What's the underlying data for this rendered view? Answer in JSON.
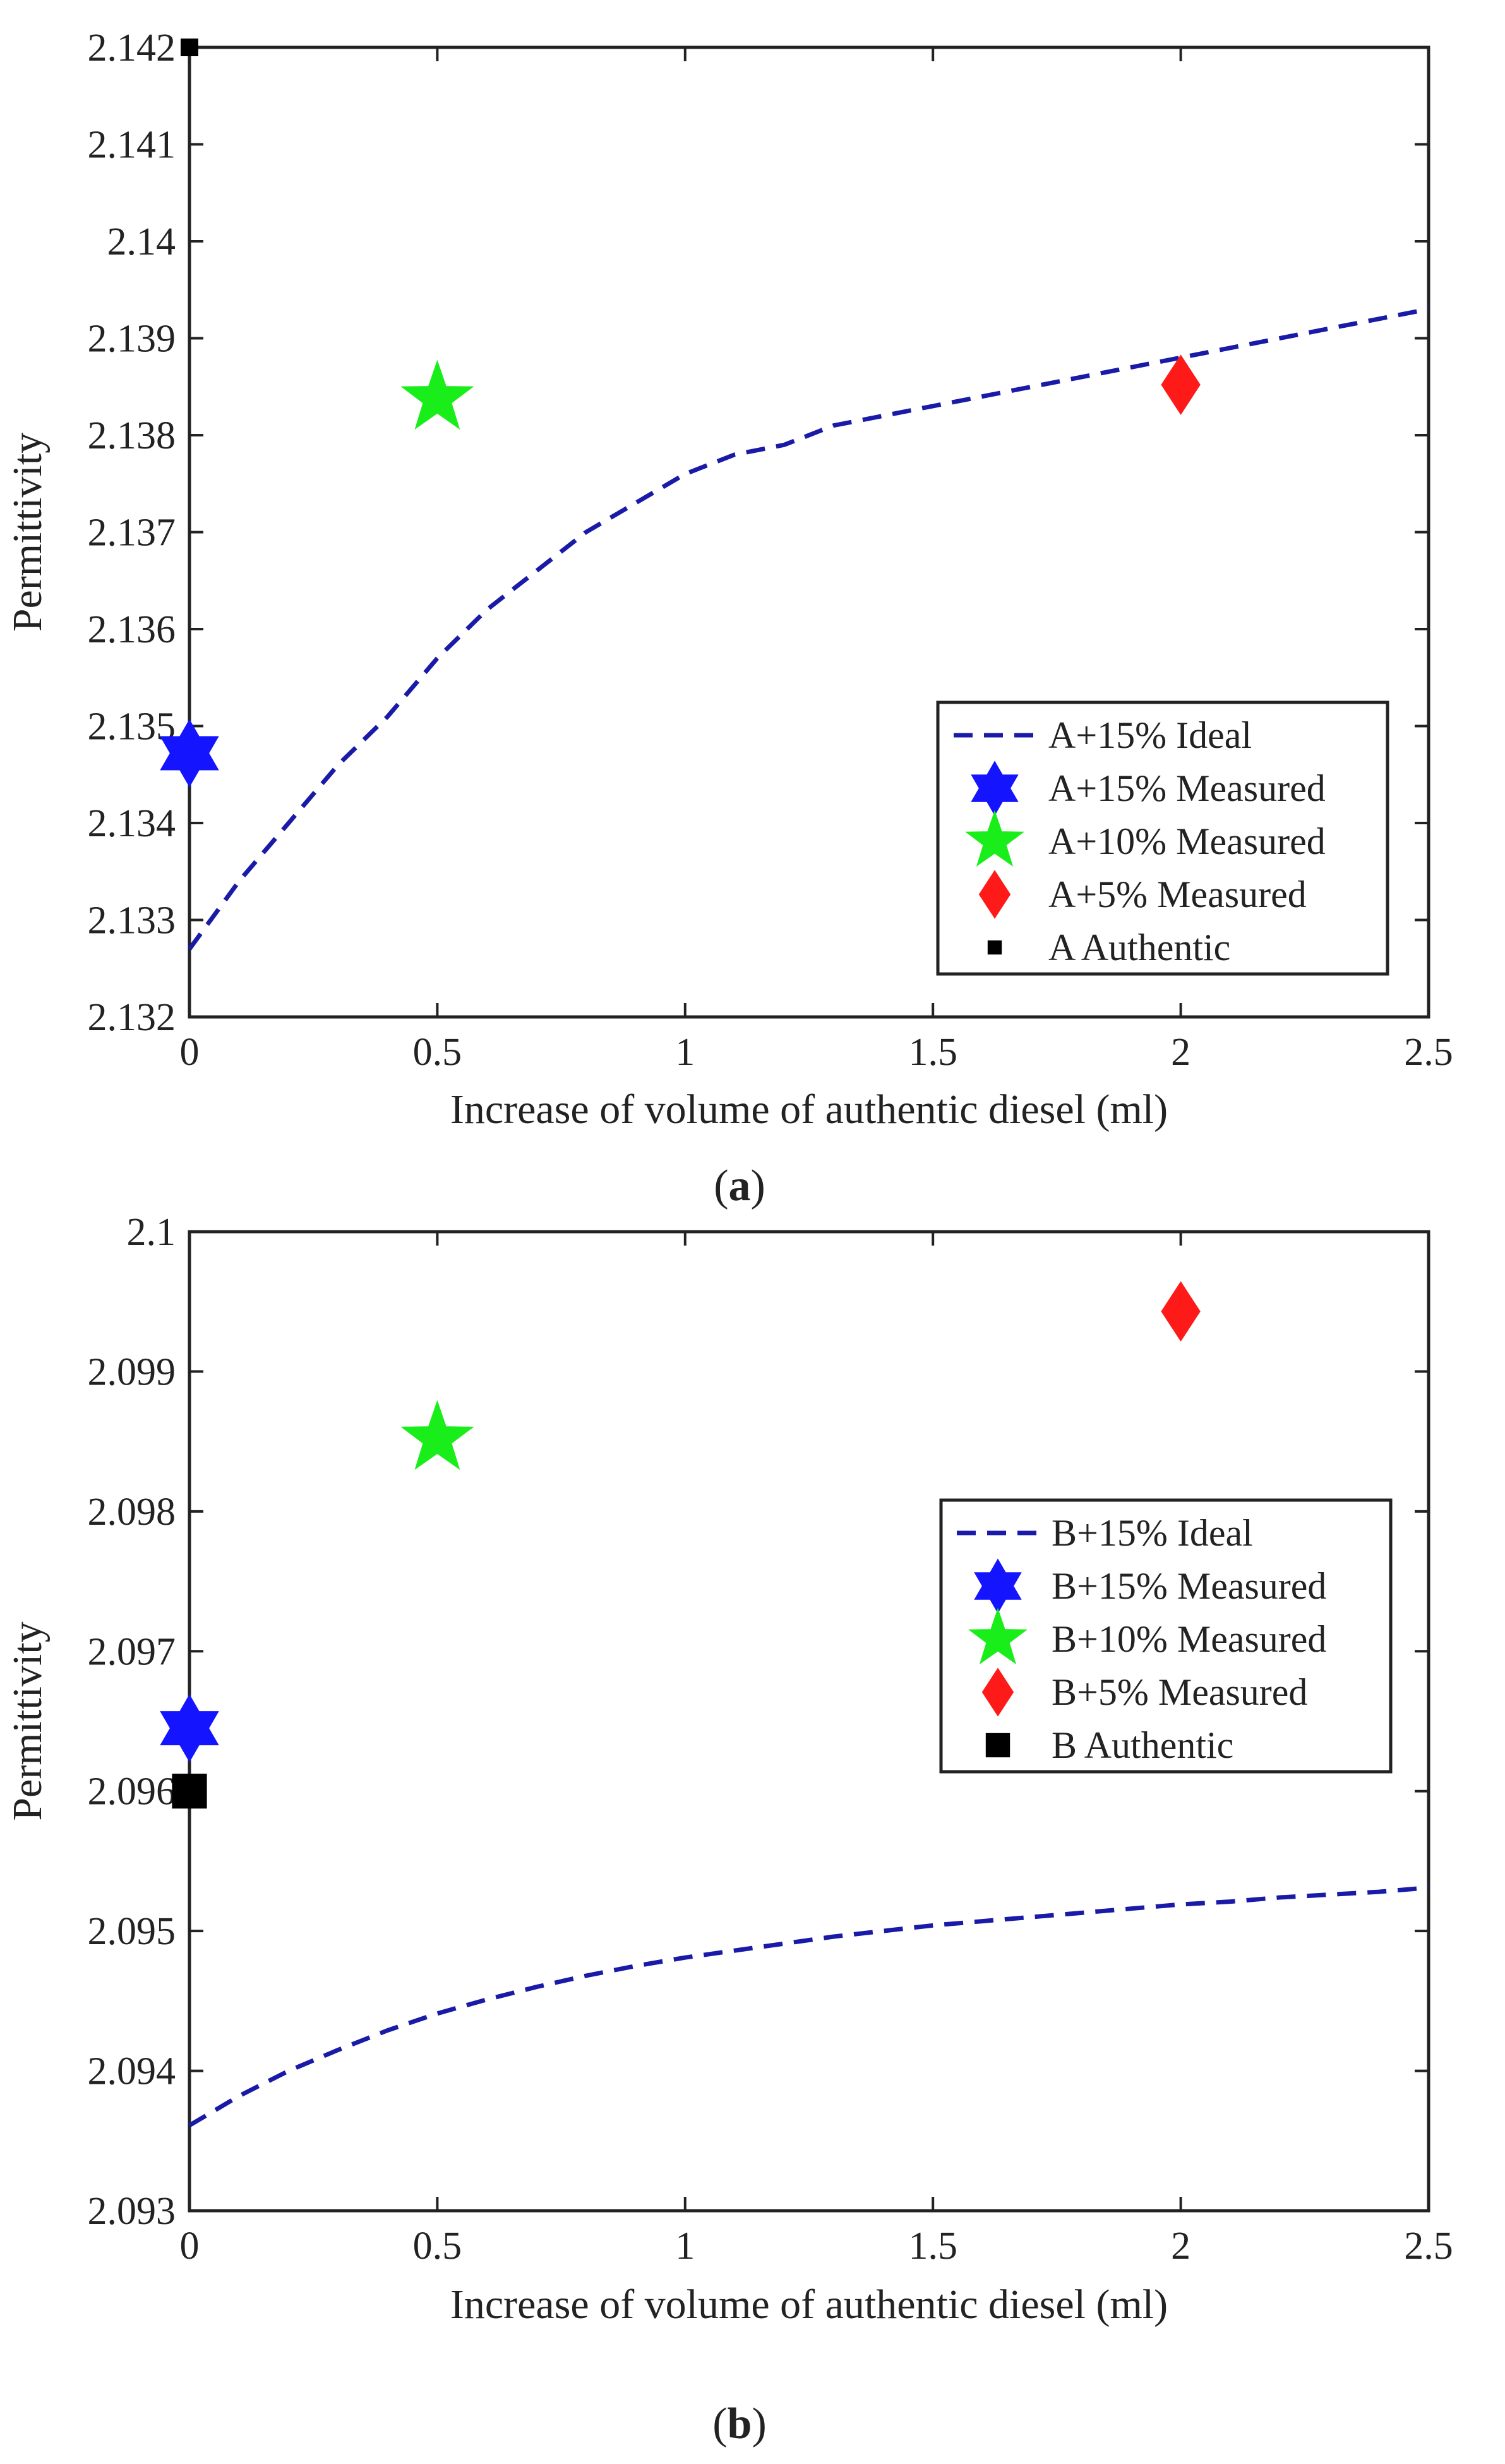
{
  "chart_data": [
    {
      "type": "scatter",
      "panel": "a",
      "caption_open": "(",
      "caption_letter": "a",
      "caption_close": ")",
      "xlabel": "Increase of volume of authentic diesel (ml)",
      "ylabel": "Permittivity",
      "xlim": [
        0,
        2.5
      ],
      "ylim": [
        2.132,
        2.142
      ],
      "xticks": [
        0,
        0.5,
        1,
        1.5,
        2,
        2.5
      ],
      "xtick_labels": [
        "0",
        "0.5",
        "1",
        "1.5",
        "2",
        "2.5"
      ],
      "yticks": [
        2.132,
        2.133,
        2.134,
        2.135,
        2.136,
        2.137,
        2.138,
        2.139,
        2.14,
        2.141,
        2.142
      ],
      "ytick_labels": [
        "2.132",
        "2.133",
        "2.134",
        "2.135",
        "2.136",
        "2.137",
        "2.138",
        "2.139",
        "2.14",
        "2.141",
        "2.142"
      ],
      "legend_position": "bottom-right",
      "series": [
        {
          "name": "A+15% Ideal",
          "kind": "line",
          "marker": "dashed",
          "color": "#1a1aa8",
          "x": [
            0,
            0.1,
            0.2,
            0.3,
            0.4,
            0.5,
            0.6,
            0.7,
            0.8,
            0.9,
            1.0,
            1.1,
            1.2,
            1.3,
            1.4,
            1.5,
            1.6,
            1.7,
            1.8,
            1.9,
            2.0,
            2.1,
            2.2,
            2.3,
            2.4,
            2.5
          ],
          "y": [
            2.1327,
            2.1334,
            2.134,
            2.1346,
            2.1351,
            2.1357,
            2.1362,
            2.1366,
            2.137,
            2.1373,
            2.1376,
            2.1378,
            2.1379,
            2.1381,
            2.1382,
            2.1383,
            2.1384,
            2.1385,
            2.1386,
            2.1387,
            2.1388,
            2.1389,
            2.139,
            2.1391,
            2.1392,
            2.1393
          ]
        },
        {
          "name": "A+15% Measured",
          "kind": "point",
          "marker": "hexagram",
          "color": "#1414ff",
          "x": [
            0
          ],
          "y": [
            2.13472
          ]
        },
        {
          "name": "A+10% Measured",
          "kind": "point",
          "marker": "pentagram",
          "color": "#1aee1a",
          "x": [
            0.5
          ],
          "y": [
            2.13838
          ]
        },
        {
          "name": "A+5% Measured",
          "kind": "point",
          "marker": "diamond",
          "color": "#ff1a1a",
          "x": [
            2.0
          ],
          "y": [
            2.13852
          ]
        },
        {
          "name": "A Authentic",
          "kind": "point",
          "marker": "square-small",
          "color": "#000000",
          "x": [
            0
          ],
          "y": [
            2.142
          ]
        }
      ]
    },
    {
      "type": "scatter",
      "panel": "b",
      "caption_open": "(",
      "caption_letter": "b",
      "caption_close": ")",
      "xlabel": "Increase of volume of authentic diesel (ml)",
      "ylabel": "Permittivity",
      "xlim": [
        0,
        2.5
      ],
      "ylim": [
        2.093,
        2.1
      ],
      "xticks": [
        0,
        0.5,
        1,
        1.5,
        2,
        2.5
      ],
      "xtick_labels": [
        "0",
        "0.5",
        "1",
        "1.5",
        "2",
        "2.5"
      ],
      "yticks": [
        2.093,
        2.094,
        2.095,
        2.096,
        2.097,
        2.098,
        2.099,
        2.1
      ],
      "ytick_labels": [
        "2.093",
        "2.094",
        "2.095",
        "2.096",
        "2.097",
        "2.098",
        "2.099",
        "2.1"
      ],
      "legend_position": "right",
      "series": [
        {
          "name": "B+15% Ideal",
          "kind": "line",
          "marker": "dashed",
          "color": "#1a1aa8",
          "x": [
            0,
            0.1,
            0.2,
            0.3,
            0.4,
            0.5,
            0.6,
            0.7,
            0.8,
            0.9,
            1.0,
            1.1,
            1.2,
            1.3,
            1.4,
            1.5,
            1.6,
            1.7,
            1.8,
            1.9,
            2.0,
            2.1,
            2.2,
            2.3,
            2.4,
            2.5
          ],
          "y": [
            2.09361,
            2.09382,
            2.094,
            2.09415,
            2.09429,
            2.09441,
            2.09451,
            2.0946,
            2.09468,
            2.09475,
            2.09481,
            2.09486,
            2.09491,
            2.09496,
            2.095,
            2.09504,
            2.09507,
            2.0951,
            2.09513,
            2.09516,
            2.09519,
            2.09521,
            2.09524,
            2.09526,
            2.09528,
            2.09531
          ]
        },
        {
          "name": "B+15% Measured",
          "kind": "point",
          "marker": "hexagram",
          "color": "#1414ff",
          "x": [
            0
          ],
          "y": [
            2.09645
          ]
        },
        {
          "name": "B+10% Measured",
          "kind": "point",
          "marker": "pentagram",
          "color": "#1aee1a",
          "x": [
            0.5
          ],
          "y": [
            2.09852
          ]
        },
        {
          "name": "B+5% Measured",
          "kind": "point",
          "marker": "diamond",
          "color": "#ff1a1a",
          "x": [
            2.0
          ],
          "y": [
            2.09943
          ]
        },
        {
          "name": "B Authentic",
          "kind": "point",
          "marker": "square",
          "color": "#000000",
          "x": [
            0
          ],
          "y": [
            2.096
          ]
        }
      ]
    }
  ]
}
